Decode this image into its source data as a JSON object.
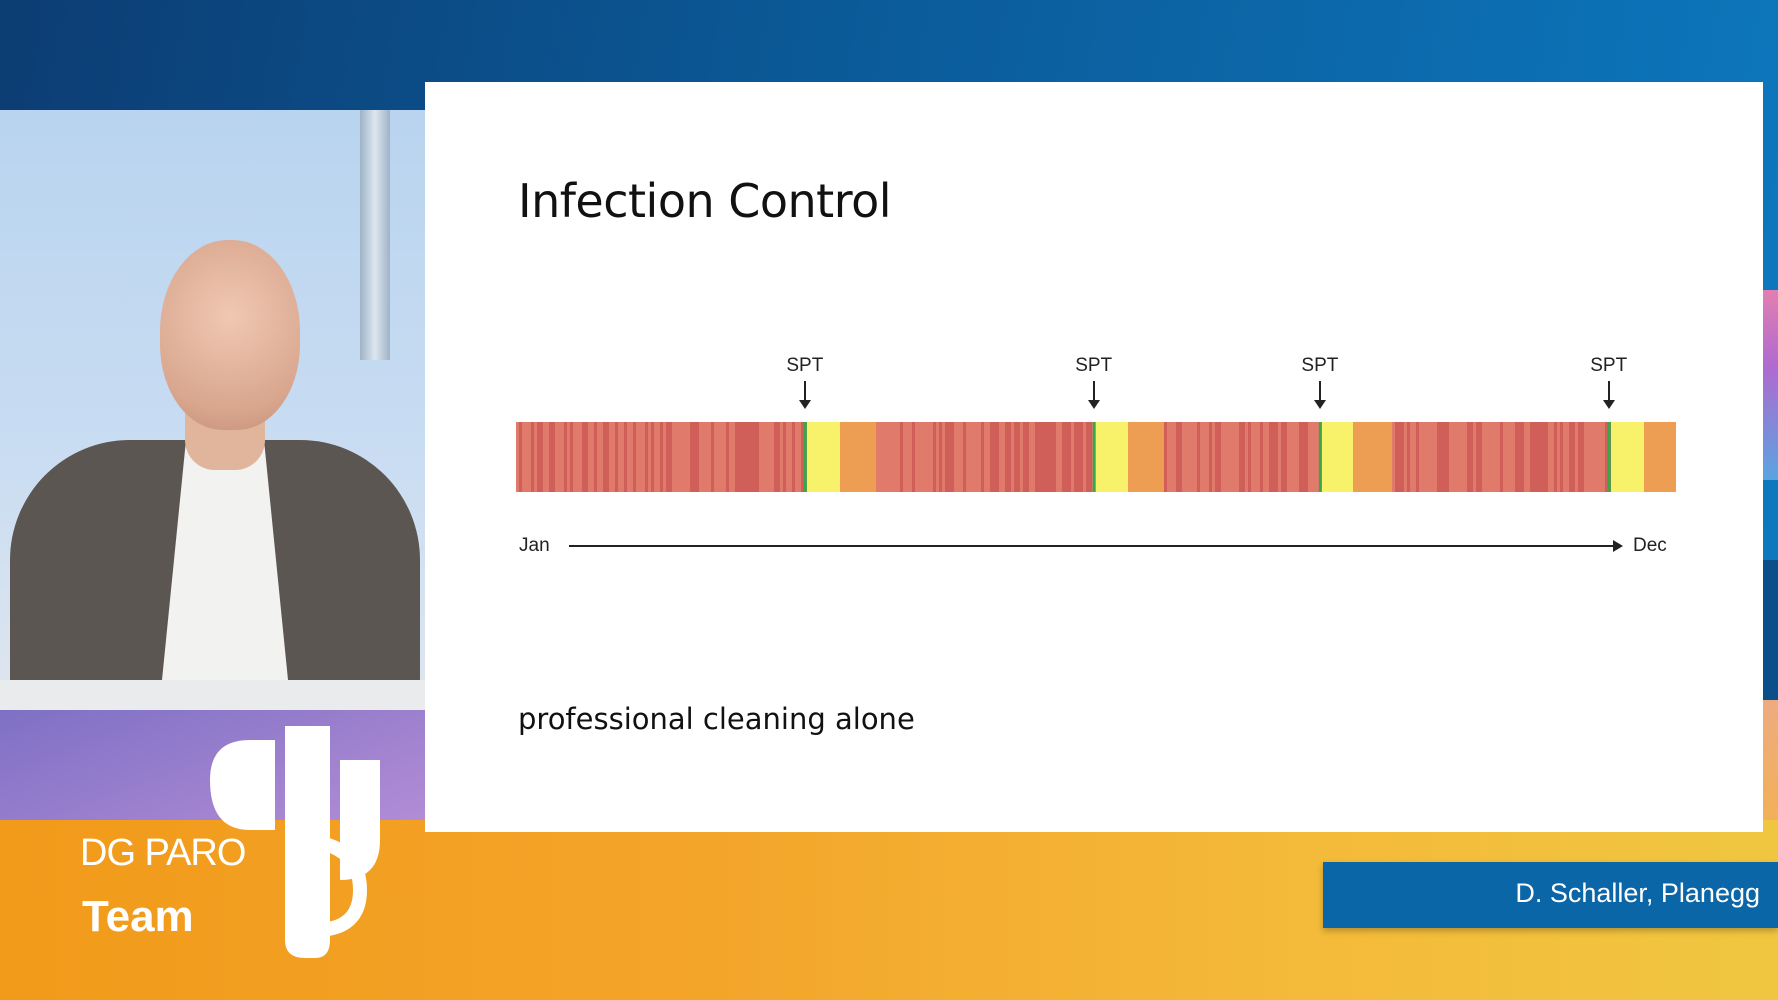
{
  "slide": {
    "title": "Infection Control",
    "caption": "professional cleaning alone"
  },
  "timeline": {
    "start_label": "Jan",
    "end_label": "Dec",
    "markers": [
      {
        "label": "SPT",
        "position": 0.249
      },
      {
        "label": "SPT",
        "position": 0.498
      },
      {
        "label": "SPT",
        "position": 0.693
      },
      {
        "label": "SPT",
        "position": 0.942
      }
    ],
    "colors": {
      "inflamed": "#e07a6a",
      "inflamed_dark": "#cf5f58",
      "transition": "#ee9e52",
      "healthy": "#f7f26a",
      "treatment": "#3aa64a"
    }
  },
  "branding": {
    "org": "DG PARO",
    "team": "Team"
  },
  "lower_third": {
    "speaker": "D. Schaller, Planegg"
  }
}
